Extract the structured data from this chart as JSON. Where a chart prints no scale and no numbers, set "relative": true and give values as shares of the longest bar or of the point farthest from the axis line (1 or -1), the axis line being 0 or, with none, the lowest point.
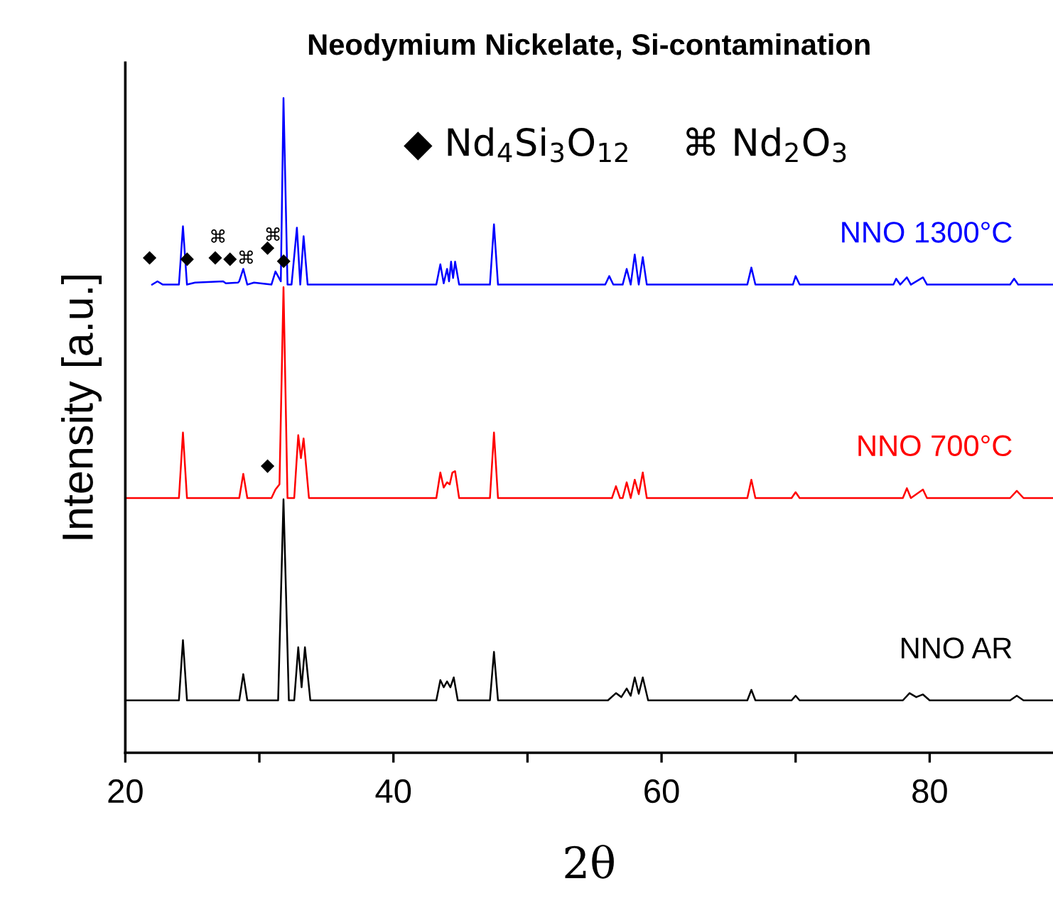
{
  "chart_data": {
    "type": "line",
    "title": "Neodymium Nickelate, Si-contamination",
    "xlabel": "2θ",
    "ylabel": "Intensity [a.u.]",
    "relative": true,
    "xlim": [
      20,
      89.2
    ],
    "xticks": [
      20,
      {
        "value": 30,
        "label": null
      },
      40,
      {
        "value": 50,
        "label": null
      },
      60,
      {
        "value": 70,
        "label": null
      },
      80
    ],
    "grid": false,
    "legend": false,
    "marker": "none",
    "line_style": "solid",
    "series": [
      {
        "name": "NNO 1300°C",
        "color": "#0000ff",
        "x": [
          22.0,
          22.4,
          22.8,
          24.0,
          24.3,
          24.6,
          25.2,
          27.3,
          27.5,
          28.4,
          28.5,
          28.8,
          29.1,
          29.6,
          30.9,
          31.2,
          31.6,
          31.8,
          32.1,
          32.4,
          32.8,
          33.05,
          33.3,
          33.6,
          43.2,
          43.5,
          43.75,
          44.0,
          44.15,
          44.3,
          44.45,
          44.6,
          44.9,
          47.2,
          47.5,
          47.8,
          55.8,
          56.1,
          56.4,
          57.1,
          57.4,
          57.7,
          58.0,
          58.3,
          58.6,
          58.9,
          66.4,
          66.7,
          67.0,
          69.8,
          70.0,
          70.3,
          77.3,
          77.5,
          77.8,
          78.3,
          78.6,
          79.5,
          79.8,
          86.0,
          86.3,
          86.6,
          89.2
        ],
        "values": [
          0.715,
          0.72,
          0.715,
          0.715,
          0.804,
          0.715,
          0.718,
          0.72,
          0.717,
          0.718,
          0.72,
          0.739,
          0.715,
          0.718,
          0.715,
          0.735,
          0.72,
          1.0,
          0.715,
          0.715,
          0.802,
          0.715,
          0.789,
          0.715,
          0.715,
          0.746,
          0.717,
          0.739,
          0.72,
          0.75,
          0.725,
          0.75,
          0.715,
          0.715,
          0.807,
          0.715,
          0.715,
          0.728,
          0.715,
          0.715,
          0.739,
          0.715,
          0.761,
          0.715,
          0.757,
          0.715,
          0.715,
          0.741,
          0.715,
          0.715,
          0.728,
          0.715,
          0.715,
          0.724,
          0.715,
          0.726,
          0.715,
          0.726,
          0.715,
          0.715,
          0.724,
          0.715,
          0.715
        ]
      },
      {
        "name": "NNO 700°C",
        "color": "#ff0000",
        "x": [
          20.0,
          24.0,
          24.3,
          24.6,
          28.5,
          28.8,
          29.1,
          30.9,
          31.2,
          31.5,
          31.8,
          32.1,
          32.6,
          32.9,
          33.1,
          33.3,
          33.7,
          43.2,
          43.5,
          43.75,
          44.0,
          44.2,
          44.4,
          44.6,
          44.9,
          47.2,
          47.5,
          47.8,
          56.3,
          56.6,
          56.9,
          57.1,
          57.4,
          57.7,
          58.0,
          58.3,
          58.6,
          58.9,
          66.4,
          66.7,
          67.0,
          69.7,
          70.0,
          70.3,
          78.0,
          78.3,
          78.6,
          79.5,
          79.8,
          86.0,
          86.5,
          87.0,
          89.2
        ],
        "values": [
          0.389,
          0.389,
          0.489,
          0.389,
          0.389,
          0.426,
          0.389,
          0.389,
          0.402,
          0.41,
          0.711,
          0.389,
          0.389,
          0.485,
          0.45,
          0.48,
          0.389,
          0.389,
          0.428,
          0.405,
          0.413,
          0.41,
          0.428,
          0.43,
          0.389,
          0.389,
          0.489,
          0.389,
          0.389,
          0.407,
          0.389,
          0.389,
          0.413,
          0.389,
          0.417,
          0.395,
          0.428,
          0.389,
          0.389,
          0.417,
          0.389,
          0.389,
          0.398,
          0.389,
          0.389,
          0.404,
          0.389,
          0.402,
          0.389,
          0.389,
          0.4,
          0.389,
          0.389
        ]
      },
      {
        "name": "NNO AR",
        "color": "#000000",
        "x": [
          20.0,
          24.0,
          24.3,
          24.6,
          28.5,
          28.8,
          29.1,
          31.4,
          31.8,
          32.2,
          32.6,
          32.9,
          33.15,
          33.4,
          33.8,
          43.2,
          43.5,
          43.75,
          44.0,
          44.25,
          44.5,
          44.8,
          47.2,
          47.5,
          47.8,
          56.0,
          56.6,
          57.0,
          57.4,
          57.7,
          58.0,
          58.3,
          58.6,
          59.0,
          66.4,
          66.7,
          67.0,
          69.7,
          70.0,
          70.3,
          78.0,
          78.5,
          79.0,
          79.5,
          80.0,
          86.0,
          86.5,
          87.0,
          89.2
        ],
        "values": [
          0.08,
          0.08,
          0.172,
          0.08,
          0.08,
          0.12,
          0.08,
          0.08,
          0.387,
          0.08,
          0.08,
          0.161,
          0.1,
          0.161,
          0.08,
          0.08,
          0.111,
          0.1,
          0.109,
          0.1,
          0.115,
          0.08,
          0.08,
          0.154,
          0.08,
          0.08,
          0.091,
          0.085,
          0.098,
          0.087,
          0.115,
          0.09,
          0.115,
          0.08,
          0.08,
          0.096,
          0.08,
          0.08,
          0.087,
          0.08,
          0.08,
          0.091,
          0.085,
          0.089,
          0.08,
          0.08,
          0.087,
          0.08,
          0.08
        ]
      }
    ],
    "annotations": [
      "◆ Nd$_{4}$Si$_{3}$O$_{12}$",
      "⌘ Nd$_{2}$O$_{3}$",
      {
        "text": "◆",
        "x": 22.4,
        "y": 0.72
      },
      {
        "text": "◆",
        "x": 25.2,
        "y": 0.718
      },
      {
        "text": "◆",
        "x": 27.3,
        "y": 0.72
      },
      {
        "text": "◆",
        "x": 28.4,
        "y": 0.718
      },
      {
        "text": "◆",
        "x": 31.2,
        "y": 0.735
      },
      {
        "text": "◆",
        "x": 32.4,
        "y": 0.715
      },
      {
        "text": "⌘",
        "x": 27.5,
        "y": 0.717
      },
      {
        "text": "⌘",
        "x": 29.6,
        "y": 0.718
      },
      {
        "text": "⌘",
        "x": 31.6,
        "y": 0.72
      },
      {
        "text": "◆",
        "x": 31.2,
        "y": 0.402
      }
    ]
  }
}
